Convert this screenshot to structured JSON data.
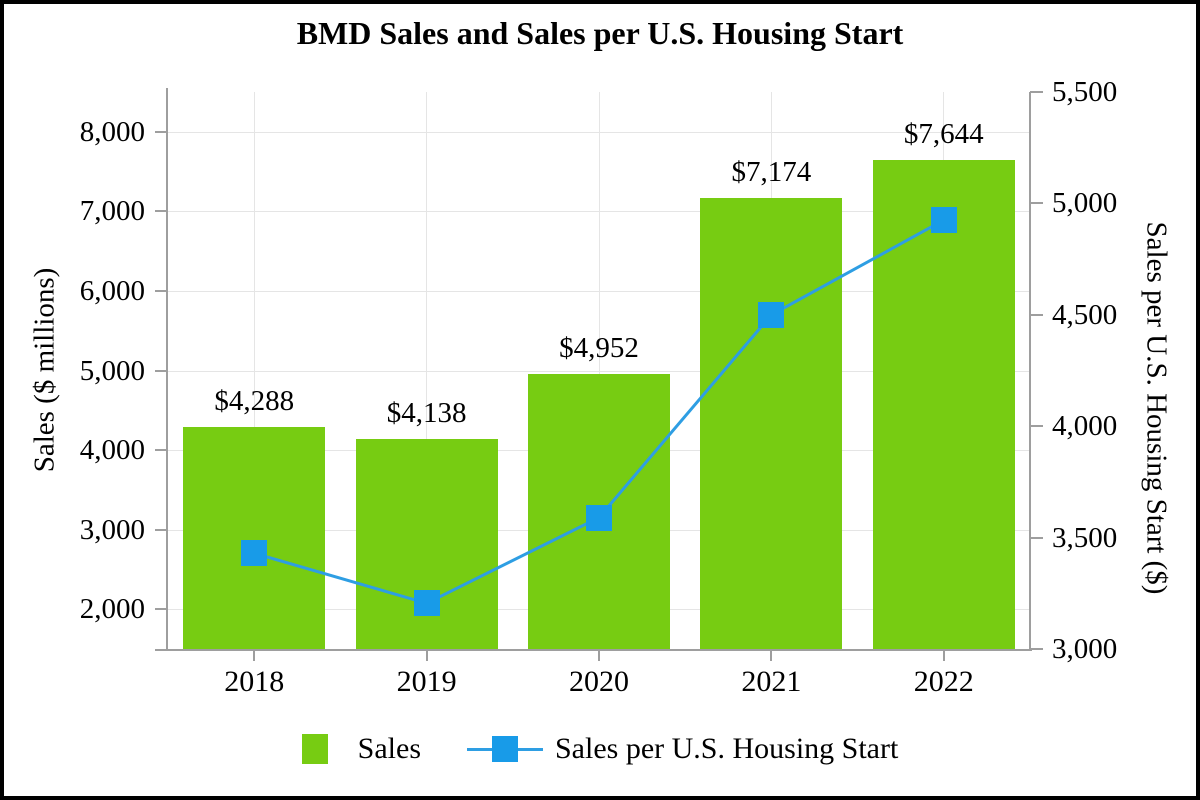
{
  "chart_data": {
    "type": "combo-bar-line",
    "title": "BMD Sales and Sales per U.S. Housing Start",
    "categories": [
      "2018",
      "2019",
      "2020",
      "2021",
      "2022"
    ],
    "series": [
      {
        "name": "Sales",
        "type": "bar",
        "axis": "left",
        "color": "#77cc12",
        "values": [
          4288,
          4138,
          4952,
          7174,
          7644
        ],
        "data_labels": [
          "$4,288",
          "$4,138",
          "$4,952",
          "$7,174",
          "$7,644"
        ]
      },
      {
        "name": "Sales per U.S. Housing Start",
        "type": "line",
        "axis": "right",
        "color": "#189be8",
        "line_color": "#2e9ee3",
        "values": [
          3430,
          3205,
          3590,
          4500,
          4925
        ]
      }
    ],
    "left_axis": {
      "title": "Sales ($ millions)",
      "min": 1500,
      "max": 8500,
      "ticks": [
        {
          "value": 2000,
          "label": "2,000"
        },
        {
          "value": 3000,
          "label": "3,000"
        },
        {
          "value": 4000,
          "label": "4,000"
        },
        {
          "value": 5000,
          "label": "5,000"
        },
        {
          "value": 6000,
          "label": "6,000"
        },
        {
          "value": 7000,
          "label": "7,000"
        },
        {
          "value": 8000,
          "label": "8,000"
        }
      ]
    },
    "right_axis": {
      "title": "Sales per U.S. Housing Start ($)",
      "min": 3000,
      "max": 5500,
      "ticks": [
        {
          "value": 3000,
          "label": "3,000"
        },
        {
          "value": 3500,
          "label": "3,500"
        },
        {
          "value": 4000,
          "label": "4,000"
        },
        {
          "value": 4500,
          "label": "4,500"
        },
        {
          "value": 5000,
          "label": "5,000"
        },
        {
          "value": 5500,
          "label": "5,500"
        }
      ]
    },
    "grid": true,
    "legend_position": "bottom",
    "colors": {
      "bar_green": "#77cc12",
      "marker_blue": "#189be8",
      "line_blue": "#2e9ee3",
      "gridline": "#e5e5e5",
      "axis_gray": "#9e9e9e"
    }
  }
}
